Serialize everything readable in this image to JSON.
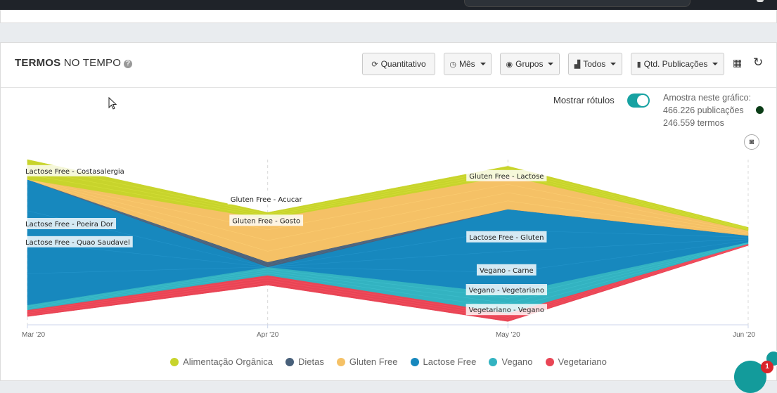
{
  "header": {
    "title_bold": "TERMOS",
    "title_rest": "NO TEMPO",
    "help_icon": "question-circle-icon",
    "buttons": [
      {
        "name": "quantitativo-button",
        "label": "Quantitativo",
        "icon": "refresh-icon",
        "glyph": "⟳",
        "dropdown": false
      },
      {
        "name": "mes-button",
        "label": "Mês",
        "icon": "clock-icon",
        "glyph": "◷",
        "dropdown": true
      },
      {
        "name": "grupos-button",
        "label": "Grupos",
        "icon": "eye-icon",
        "glyph": "◉",
        "dropdown": true
      },
      {
        "name": "todos-button",
        "label": "Todos",
        "icon": "bar-chart-icon",
        "glyph": "▟",
        "dropdown": true
      },
      {
        "name": "qtd-publicacoes-button",
        "label": "Qtd. Publicações",
        "icon": "column-chart-icon",
        "glyph": "▮",
        "dropdown": true
      }
    ],
    "tools": [
      {
        "name": "export-icon",
        "glyph": "▦"
      },
      {
        "name": "reload-icon",
        "glyph": "↻"
      }
    ]
  },
  "controls": {
    "toggle_label": "Mostrar rótulos",
    "toggle_on": true,
    "sample_title": "Amostra neste gráfico:",
    "sample_publications": "466.226 publicações",
    "sample_terms": "246.559 termos",
    "camera_icon": "camera-icon"
  },
  "colors": {
    "Alimentação Orgânica": "#c8d42c",
    "Dietas": "#48607a",
    "Gluten Free": "#f5c166",
    "Lactose Free": "#1788be",
    "Vegano": "#33b3c1",
    "Vegetariano": "#e94555"
  },
  "chart_data": {
    "type": "area",
    "stacked": true,
    "x": [
      "Mar '20",
      "Apr '20",
      "May '20",
      "Jun '20"
    ],
    "y_min_share": [
      0.05,
      0.24,
      0.02,
      0.48
    ],
    "series": [
      {
        "name": "Vegetariano",
        "values": [
          0.04,
          0.06,
          0.05,
          0.01
        ]
      },
      {
        "name": "Vegano",
        "values": [
          0.03,
          0.05,
          0.12,
          0.01
        ]
      },
      {
        "name": "Lactose Free",
        "values": [
          0.76,
          0.0,
          0.51,
          0.04
        ]
      },
      {
        "name": "Dietas",
        "values": [
          0.0,
          0.03,
          0.0,
          0.0
        ]
      },
      {
        "name": "Gluten Free",
        "values": [
          0.0,
          0.26,
          0.2,
          0.03
        ]
      },
      {
        "name": "Alimentação Orgânica",
        "values": [
          0.12,
          0.04,
          0.06,
          0.02
        ]
      }
    ],
    "annotations": [
      {
        "text": "Lactose Free - Costasalergia",
        "x": 0,
        "y": 0.92
      },
      {
        "text": "Lactose Free - Poeira Dor",
        "x": 0,
        "y": 0.6
      },
      {
        "text": "Lactose Free - Quao Saudavel",
        "x": 0,
        "y": 0.49
      },
      {
        "text": "Gluten Free - Acucar",
        "x": 1,
        "y": 0.75
      },
      {
        "text": "Gluten Free - Gosto",
        "x": 1,
        "y": 0.62
      },
      {
        "text": "Gluten Free - Lactose",
        "x": 2,
        "y": 0.89
      },
      {
        "text": "Lactose Free - Gluten",
        "x": 2,
        "y": 0.52
      },
      {
        "text": "Vegano - Carne",
        "x": 2,
        "y": 0.32
      },
      {
        "text": "Vegano - Vegetariano",
        "x": 2,
        "y": 0.2
      },
      {
        "text": "Vegetariano - Vegano",
        "x": 2,
        "y": 0.08
      }
    ],
    "legend_position": "bottom",
    "legend": [
      "Alimentação Orgânica",
      "Dietas",
      "Gluten Free",
      "Lactose Free",
      "Vegano",
      "Vegetariano"
    ],
    "grid": "vertical-dashed"
  },
  "chat": {
    "badge": "1"
  }
}
